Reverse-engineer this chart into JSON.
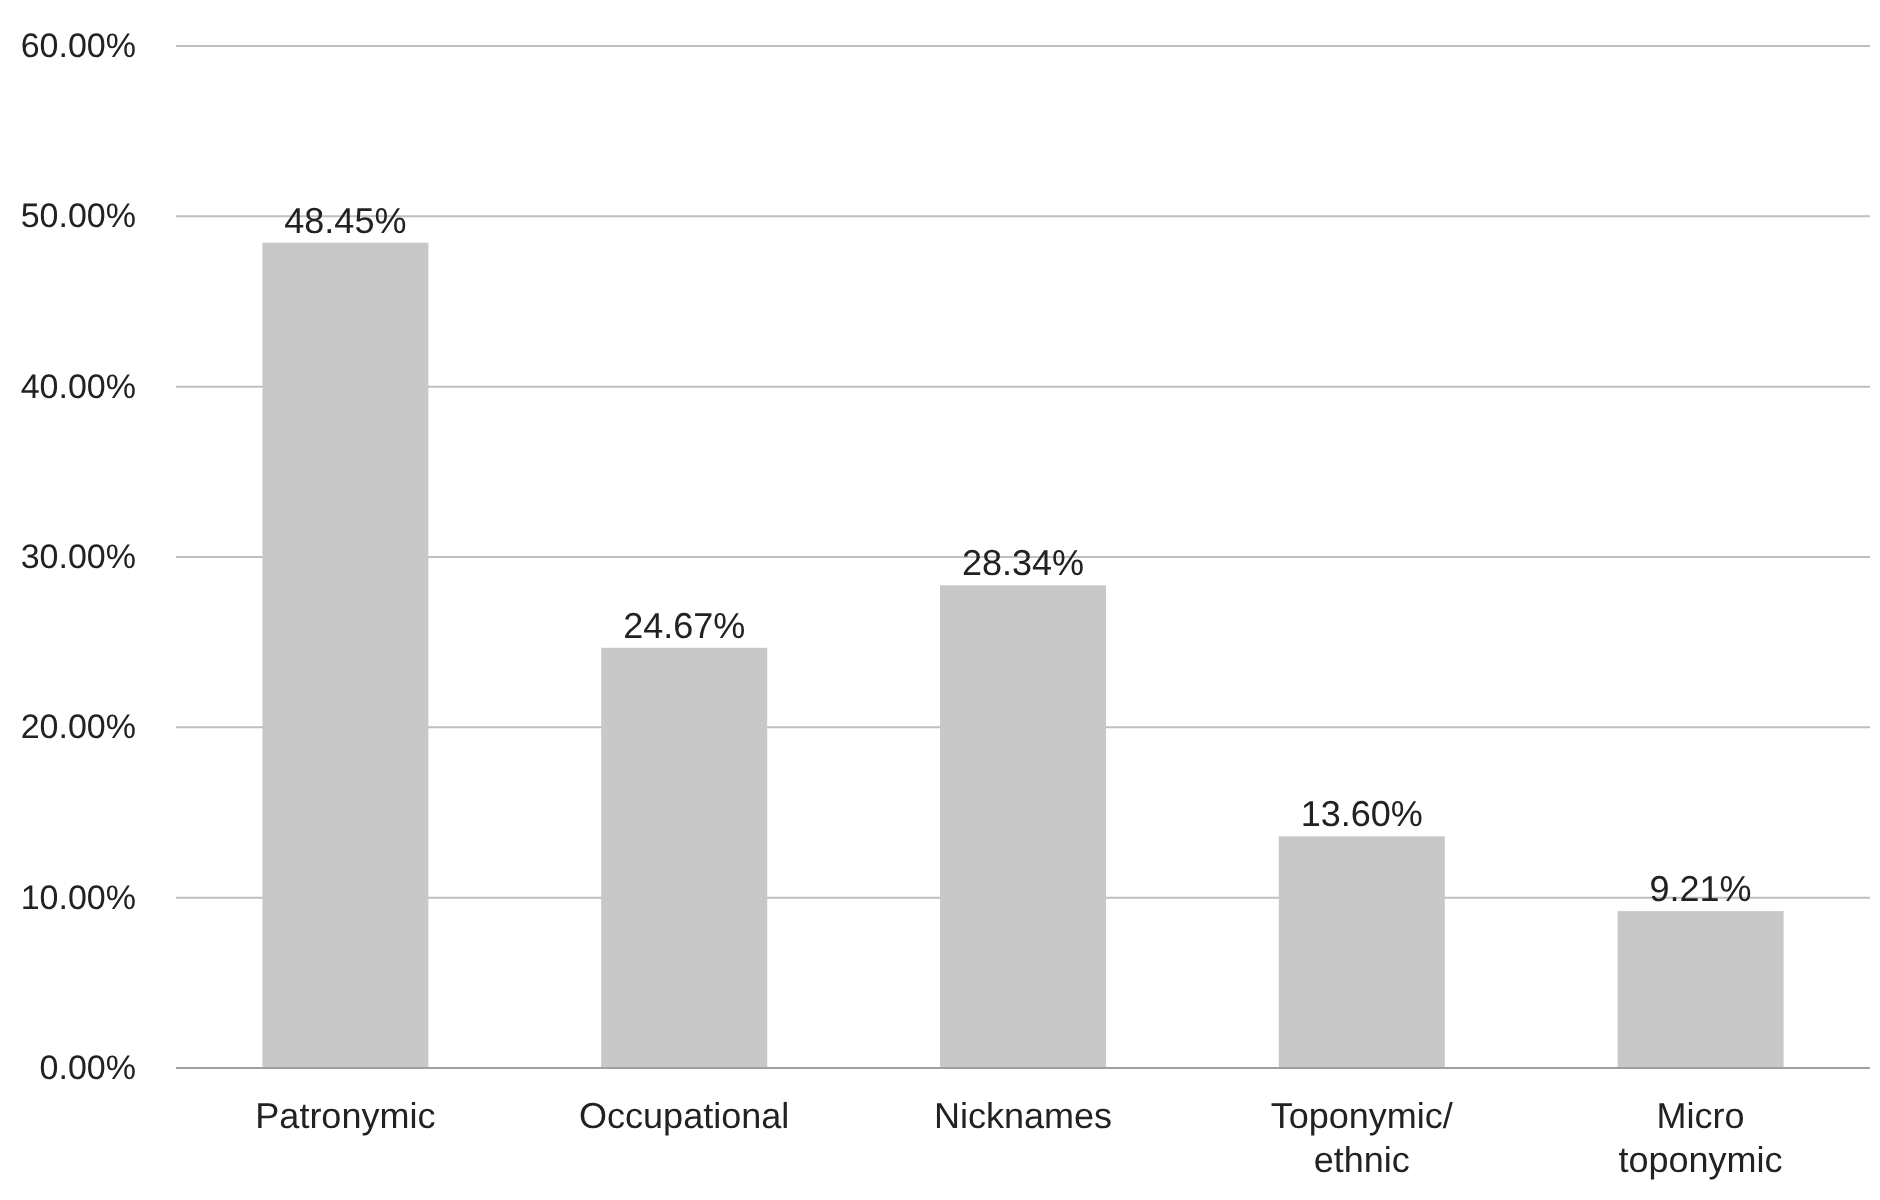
{
  "chart_data": {
    "type": "bar",
    "categories": [
      "Patronymic",
      "Occupational",
      "Nicknames",
      "Toponymic/ ethnic",
      "Micro toponymic"
    ],
    "values": [
      48.45,
      24.67,
      28.34,
      13.6,
      9.21
    ],
    "value_labels": [
      "48.45%",
      "24.67%",
      "28.34%",
      "13.60%",
      "9.21%"
    ],
    "color": "#c8c8c9",
    "ylim": [
      0,
      60
    ],
    "yticks": [
      {
        "value": 0,
        "label": "0.00%"
      },
      {
        "value": 10,
        "label": "10.00%"
      },
      {
        "value": 20,
        "label": "20.00%"
      },
      {
        "value": 30,
        "label": "30.00%"
      },
      {
        "value": 40,
        "label": "40.00%"
      },
      {
        "value": 50,
        "label": "50.00%"
      },
      {
        "value": 60,
        "label": "60.00%"
      }
    ],
    "grid": "y"
  }
}
